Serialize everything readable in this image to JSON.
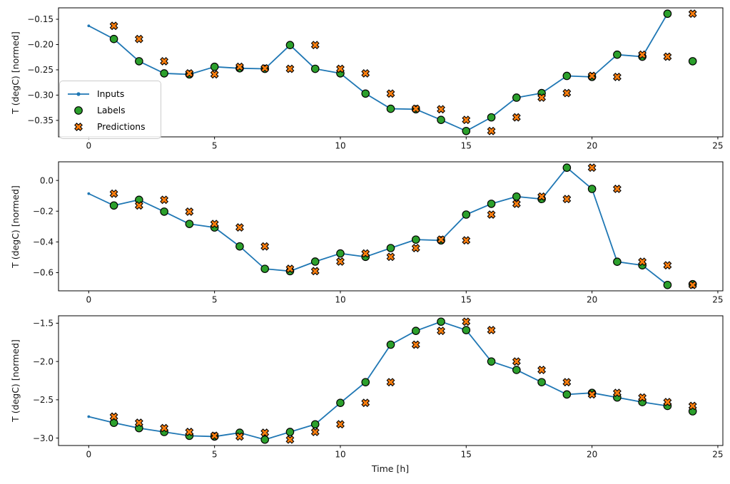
{
  "legend": {
    "items": [
      "Inputs",
      "Labels",
      "Predictions"
    ]
  },
  "chart_data": {
    "type": "line",
    "title": "",
    "xlabel": "Time [h]",
    "ylabel_shared": "T (degC) [normed]",
    "xlim": [
      -1.2,
      25.2
    ],
    "xticks": [
      0,
      5,
      10,
      15,
      20,
      25
    ],
    "grid": false,
    "legend_position": "upper left inside first subplot",
    "colors": {
      "inputs": "#1f77b4",
      "labels": "#2ca02c",
      "predictions": "#ff7f0e",
      "marker_edge": "#000000",
      "spine": "#000000"
    },
    "subplots": [
      {
        "ylabel": "T (degC) [normed]",
        "ylim": [
          -0.3826,
          -0.1274
        ],
        "yticks": [
          -0.15,
          -0.2,
          -0.25,
          -0.3,
          -0.35
        ],
        "ytick_decimals": 2,
        "series": [
          {
            "name": "Inputs",
            "style": "line-with-dots",
            "x": [
              0,
              1,
              2,
              3,
              4,
              5,
              6,
              7,
              8,
              9,
              10,
              11,
              12,
              13,
              14,
              15,
              16,
              17,
              18,
              19,
              20,
              21,
              22,
              23
            ],
            "y": [
              -0.163,
              -0.189,
              -0.233,
              -0.257,
              -0.259,
              -0.244,
              -0.247,
              -0.248,
              -0.201,
              -0.248,
              -0.257,
              -0.297,
              -0.327,
              -0.328,
              -0.349,
              -0.371,
              -0.344,
              -0.305,
              -0.296,
              -0.262,
              -0.264,
              -0.22,
              -0.224,
              -0.139
            ]
          },
          {
            "name": "Labels",
            "style": "circle-scatter",
            "x": [
              1,
              2,
              3,
              4,
              5,
              6,
              7,
              8,
              9,
              10,
              11,
              12,
              13,
              14,
              15,
              16,
              17,
              18,
              19,
              20,
              21,
              22,
              23,
              24
            ],
            "y": [
              -0.189,
              -0.233,
              -0.257,
              -0.259,
              -0.244,
              -0.247,
              -0.248,
              -0.201,
              -0.248,
              -0.257,
              -0.297,
              -0.327,
              -0.328,
              -0.349,
              -0.371,
              -0.344,
              -0.305,
              -0.296,
              -0.262,
              -0.264,
              -0.22,
              -0.224,
              -0.139,
              -0.233
            ]
          },
          {
            "name": "Predictions",
            "style": "x-scatter",
            "x": [
              1,
              2,
              3,
              4,
              5,
              6,
              7,
              8,
              9,
              10,
              11,
              12,
              13,
              14,
              15,
              16,
              17,
              18,
              19,
              20,
              21,
              22,
              23,
              24
            ],
            "y": [
              -0.163,
              -0.189,
              -0.233,
              -0.257,
              -0.259,
              -0.244,
              -0.247,
              -0.248,
              -0.201,
              -0.248,
              -0.257,
              -0.297,
              -0.327,
              -0.328,
              -0.349,
              -0.371,
              -0.344,
              -0.305,
              -0.296,
              -0.262,
              -0.264,
              -0.22,
              -0.224,
              -0.139
            ]
          }
        ]
      },
      {
        "ylabel": "T (degC) [normed]",
        "ylim": [
          -0.7182,
          0.1212
        ],
        "yticks": [
          0.0,
          -0.2,
          -0.4,
          -0.6
        ],
        "ytick_decimals": 1,
        "series": [
          {
            "name": "Inputs",
            "style": "line-with-dots",
            "x": [
              0,
              1,
              2,
              3,
              4,
              5,
              6,
              7,
              8,
              9,
              10,
              11,
              12,
              13,
              14,
              15,
              16,
              17,
              18,
              19,
              20,
              21,
              22,
              23
            ],
            "y": [
              -0.086,
              -0.163,
              -0.126,
              -0.203,
              -0.283,
              -0.306,
              -0.429,
              -0.575,
              -0.59,
              -0.528,
              -0.475,
              -0.497,
              -0.44,
              -0.385,
              -0.39,
              -0.222,
              -0.152,
              -0.105,
              -0.121,
              0.083,
              -0.055,
              -0.529,
              -0.552,
              -0.68
            ]
          },
          {
            "name": "Labels",
            "style": "circle-scatter",
            "x": [
              1,
              2,
              3,
              4,
              5,
              6,
              7,
              8,
              9,
              10,
              11,
              12,
              13,
              14,
              15,
              16,
              17,
              18,
              19,
              20,
              21,
              22,
              23,
              24
            ],
            "y": [
              -0.163,
              -0.126,
              -0.203,
              -0.283,
              -0.306,
              -0.429,
              -0.575,
              -0.59,
              -0.528,
              -0.475,
              -0.497,
              -0.44,
              -0.385,
              -0.39,
              -0.222,
              -0.152,
              -0.105,
              -0.121,
              0.083,
              -0.055,
              -0.529,
              -0.552,
              -0.68,
              -0.675
            ]
          },
          {
            "name": "Predictions",
            "style": "x-scatter",
            "x": [
              1,
              2,
              3,
              4,
              5,
              6,
              7,
              8,
              9,
              10,
              11,
              12,
              13,
              14,
              15,
              16,
              17,
              18,
              19,
              20,
              21,
              22,
              23,
              24
            ],
            "y": [
              -0.086,
              -0.163,
              -0.126,
              -0.203,
              -0.283,
              -0.306,
              -0.429,
              -0.575,
              -0.59,
              -0.528,
              -0.475,
              -0.497,
              -0.44,
              -0.385,
              -0.39,
              -0.222,
              -0.152,
              -0.105,
              -0.121,
              0.083,
              -0.055,
              -0.529,
              -0.552,
              -0.68
            ]
          }
        ]
      },
      {
        "ylabel": "T (degC) [normed]",
        "ylim": [
          -3.097,
          -1.403
        ],
        "yticks": [
          -1.5,
          -2.0,
          -2.5,
          -3.0
        ],
        "ytick_decimals": 1,
        "series": [
          {
            "name": "Inputs",
            "style": "line-with-dots",
            "x": [
              0,
              1,
              2,
              3,
              4,
              5,
              6,
              7,
              8,
              9,
              10,
              11,
              12,
              13,
              14,
              15,
              16,
              17,
              18,
              19,
              20,
              21,
              22,
              23
            ],
            "y": [
              -2.72,
              -2.8,
              -2.87,
              -2.92,
              -2.97,
              -2.98,
              -2.93,
              -3.02,
              -2.92,
              -2.82,
              -2.54,
              -2.27,
              -1.78,
              -1.6,
              -1.48,
              -1.59,
              -2.0,
              -2.11,
              -2.27,
              -2.43,
              -2.41,
              -2.47,
              -2.53,
              -2.58
            ]
          },
          {
            "name": "Labels",
            "style": "circle-scatter",
            "x": [
              1,
              2,
              3,
              4,
              5,
              6,
              7,
              8,
              9,
              10,
              11,
              12,
              13,
              14,
              15,
              16,
              17,
              18,
              19,
              20,
              21,
              22,
              23,
              24
            ],
            "y": [
              -2.8,
              -2.87,
              -2.92,
              -2.97,
              -2.98,
              -2.93,
              -3.02,
              -2.92,
              -2.82,
              -2.54,
              -2.27,
              -1.78,
              -1.6,
              -1.48,
              -1.59,
              -2.0,
              -2.11,
              -2.27,
              -2.43,
              -2.41,
              -2.47,
              -2.53,
              -2.58,
              -2.65
            ]
          },
          {
            "name": "Predictions",
            "style": "x-scatter",
            "x": [
              1,
              2,
              3,
              4,
              5,
              6,
              7,
              8,
              9,
              10,
              11,
              12,
              13,
              14,
              15,
              16,
              17,
              18,
              19,
              20,
              21,
              22,
              23,
              24
            ],
            "y": [
              -2.72,
              -2.8,
              -2.87,
              -2.92,
              -2.97,
              -2.98,
              -2.93,
              -3.02,
              -2.92,
              -2.82,
              -2.54,
              -2.27,
              -1.78,
              -1.6,
              -1.48,
              -1.59,
              -2.0,
              -2.11,
              -2.27,
              -2.43,
              -2.41,
              -2.47,
              -2.53,
              -2.58
            ]
          }
        ]
      }
    ]
  }
}
